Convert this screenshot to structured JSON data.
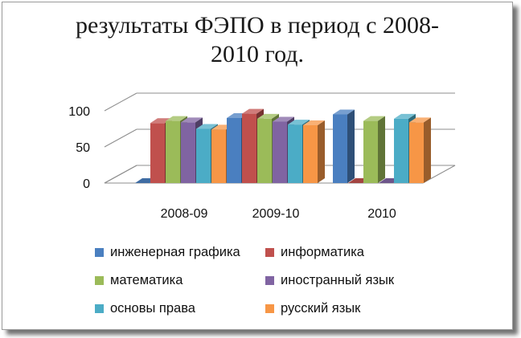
{
  "chart_data": {
    "type": "bar",
    "title_line1": "результаты  ФЭПО в период с 2008-",
    "title_line2": "2010 год.",
    "categories": [
      "2008-09",
      "2009-10",
      "2010"
    ],
    "yticks": [
      "0",
      "50",
      "100"
    ],
    "ylim": [
      0,
      100
    ],
    "grid": true,
    "legend_position": "bottom",
    "series": [
      {
        "name": "инженерная графика",
        "values": [
          0,
          90,
          95
        ],
        "color": "#4a7fc0"
      },
      {
        "name": "информатика",
        "values": [
          83,
          96,
          0
        ],
        "color": "#c0504d"
      },
      {
        "name": "математика",
        "values": [
          86,
          89,
          86
        ],
        "color": "#9bbb59"
      },
      {
        "name": "иностранный язык",
        "values": [
          84,
          85,
          0
        ],
        "color": "#8064a2"
      },
      {
        "name": "основы права",
        "values": [
          75,
          81,
          89
        ],
        "color": "#4bacc6"
      },
      {
        "name": "русский язык",
        "values": [
          74,
          80,
          84
        ],
        "color": "#f79646"
      }
    ]
  }
}
